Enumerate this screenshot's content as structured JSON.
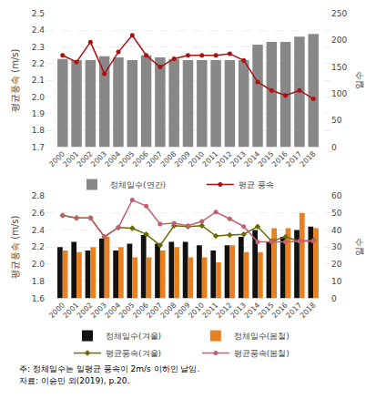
{
  "chart_data": [
    {
      "type": "bar",
      "categories": [
        "2000",
        "2001",
        "2002",
        "2003",
        "2004",
        "2005",
        "2006",
        "2007",
        "2008",
        "2009",
        "2010",
        "2011",
        "2012",
        "2013",
        "2014",
        "2015",
        "2016",
        "2017",
        "2018"
      ],
      "ylabel": "평균풍속 (m/s)",
      "y2label": "일수",
      "ylim": [
        1.7,
        2.5
      ],
      "yticks": [
        1.7,
        1.8,
        1.9,
        {
          "value": 2.0,
          "label": "2.0"
        },
        2.1,
        2.2,
        2.3,
        2.4,
        2.5
      ],
      "y2lim": [
        0,
        250
      ],
      "y2ticks": [
        0,
        50,
        100,
        150,
        200,
        250
      ],
      "grid": true,
      "legend": "lower right",
      "series": [
        {
          "name": "정체일수(연간)",
          "type": "bar",
          "axis": "y2",
          "color": "#888888",
          "values": [
            165,
            163,
            163,
            170,
            168,
            163,
            172,
            168,
            165,
            163,
            163,
            163,
            163,
            163,
            192,
            197,
            197,
            207,
            212
          ]
        },
        {
          "name": "평균 풍속",
          "type": "line",
          "marker": "circle",
          "color": "#aa1111",
          "values": [
            2.25,
            2.21,
            2.33,
            2.14,
            2.27,
            2.37,
            2.25,
            2.18,
            2.23,
            2.25,
            2.25,
            2.25,
            2.26,
            2.22,
            2.09,
            2.04,
            2.01,
            2.04,
            1.99
          ]
        }
      ]
    },
    {
      "type": "bar",
      "categories": [
        "2000",
        "2001",
        "2002",
        "2003",
        "2004",
        "2005",
        "2006",
        "2007",
        "2008",
        "2009",
        "2010",
        "2011",
        "2012",
        "2013",
        "2014",
        "2015",
        "2016",
        "2017",
        "2018"
      ],
      "ylabel": "평균풍속 (m/s)",
      "y2label": "일수",
      "ylim": [
        1.6,
        2.8
      ],
      "yticks": [
        1.6,
        1.8,
        {
          "value": 2.0,
          "label": "2.0"
        },
        2.2,
        2.4,
        2.6,
        2.8
      ],
      "y2lim": [
        0,
        60
      ],
      "y2ticks": [
        0,
        10,
        20,
        30,
        40,
        50,
        60
      ],
      "grid": true,
      "legend": "lower right",
      "series": [
        {
          "name": "정체일수(겨울)",
          "type": "bar",
          "axis": "y2",
          "color": "#111111",
          "values": [
            30,
            33,
            28,
            35,
            28,
            32,
            37,
            32,
            33,
            33,
            31,
            28,
            31,
            36,
            40,
            33,
            36,
            40,
            42
          ]
        },
        {
          "name": "정체일수(봄철)",
          "type": "bar",
          "axis": "y2",
          "color": "#e88020",
          "values": [
            28,
            27,
            30,
            36,
            30,
            24,
            24,
            28,
            30,
            24,
            24,
            21,
            31,
            27,
            27,
            41,
            41,
            50,
            41
          ]
        },
        {
          "name": "평균풍속(겨울)",
          "type": "line",
          "marker": "diamond",
          "color": "#6b6b00",
          "values": [
            2.57,
            2.54,
            2.54,
            2.32,
            2.43,
            2.42,
            2.35,
            2.22,
            2.45,
            2.44,
            2.45,
            2.33,
            2.34,
            2.35,
            2.44,
            2.27,
            2.32,
            2.27,
            2.28
          ]
        },
        {
          "name": "평균풍속(봄철)",
          "type": "line",
          "marker": "circle",
          "color": "#c06070",
          "values": [
            2.57,
            2.54,
            2.54,
            2.32,
            2.43,
            2.75,
            2.68,
            2.47,
            2.48,
            2.45,
            2.5,
            2.61,
            2.53,
            2.44,
            2.26,
            2.26,
            2.26,
            2.27,
            2.27
          ]
        }
      ],
      "annotations": [
        "주: 정체일수는 일평균 풍속이 2m/s 이하인 날임.",
        "자료: 이승민 외(2019), p.20."
      ]
    }
  ]
}
